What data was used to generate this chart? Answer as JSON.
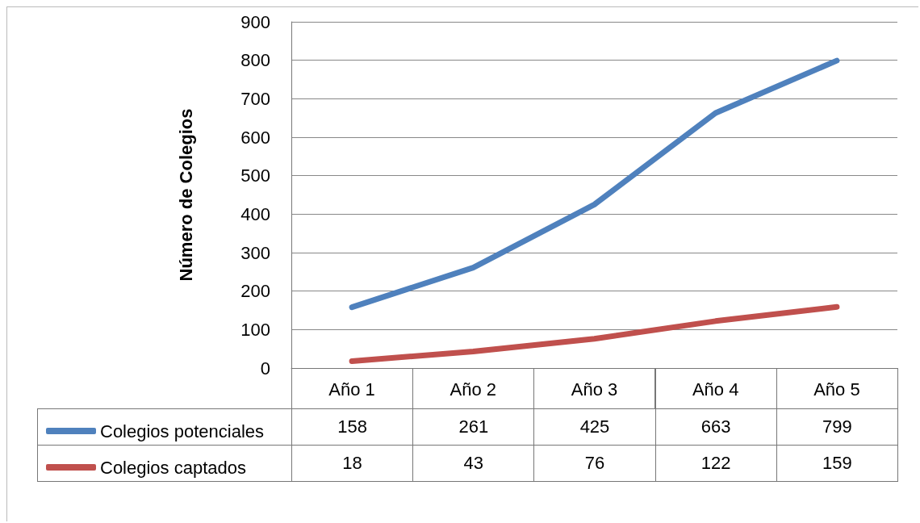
{
  "chart_data": {
    "type": "line",
    "ylabel": "Número de Colegios",
    "categories": [
      "Año 1",
      "Año 2",
      "Año 3",
      "Año 4",
      "Año 5"
    ],
    "series": [
      {
        "name": "Colegios potenciales",
        "color": "#4f81bd",
        "values": [
          158,
          261,
          425,
          663,
          799
        ]
      },
      {
        "name": "Colegios captados",
        "color": "#c0504d",
        "values": [
          18,
          43,
          76,
          122,
          159
        ]
      }
    ],
    "ylim": [
      0,
      900
    ],
    "yticks": [
      0,
      100,
      200,
      300,
      400,
      500,
      600,
      700,
      800,
      900
    ],
    "grid": "y",
    "legend": "bottom left",
    "marker": "none",
    "line_style": "solid",
    "data_labels": true
  }
}
